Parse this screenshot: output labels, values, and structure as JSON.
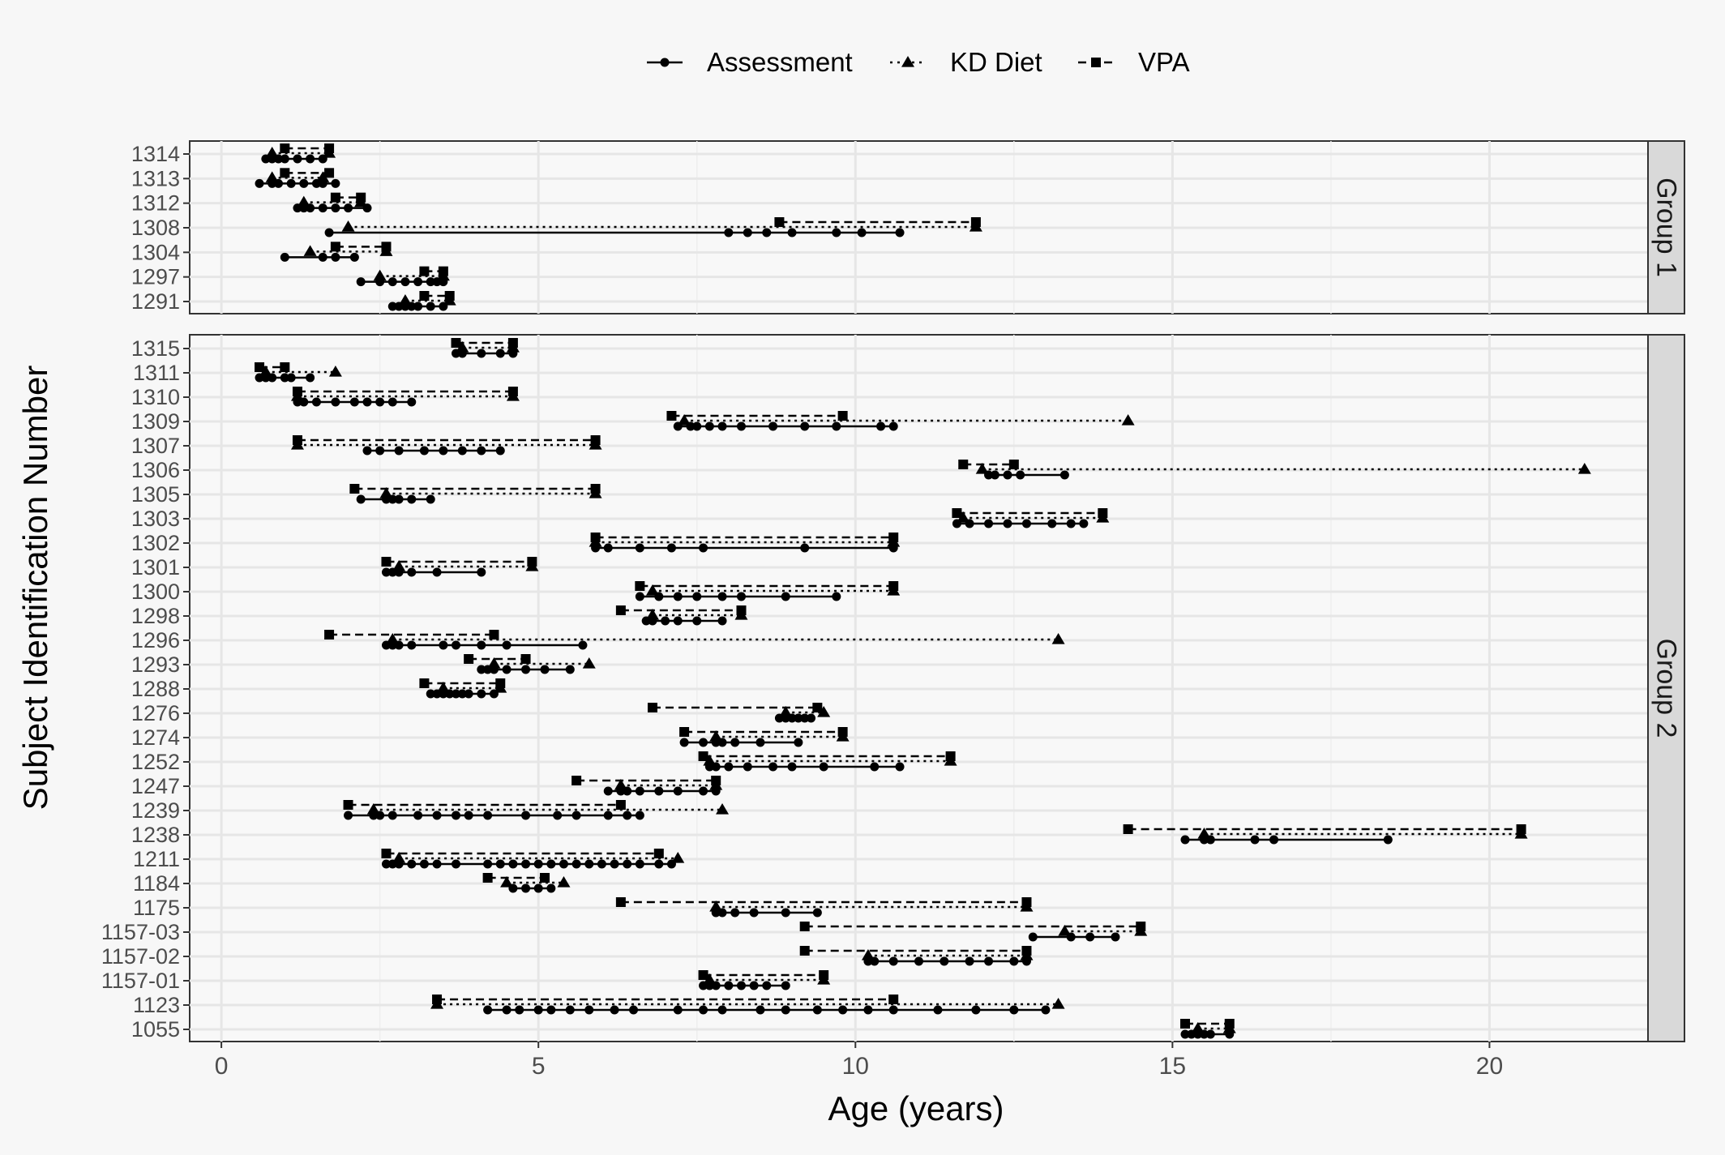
{
  "chart_data": {
    "type": "line",
    "xlabel": "Age (years)",
    "ylabel": "Subject Identification Number",
    "xlim": [
      -0.5,
      22.5
    ],
    "xticks": [
      0,
      5,
      10,
      15,
      20
    ],
    "grid": true,
    "legend_position": "top",
    "legend": [
      {
        "name": "Assessment",
        "linetype": "solid",
        "marker": "circle"
      },
      {
        "name": "KD Diet",
        "linetype": "dotted",
        "marker": "triangle"
      },
      {
        "name": "VPA",
        "linetype": "dashed",
        "marker": "square"
      }
    ],
    "facets": [
      {
        "label": "Group 1",
        "subjects": [
          {
            "id": "1314",
            "assessment": [
              0.7,
              0.8,
              0.9,
              1.0,
              1.2,
              1.4,
              1.6
            ],
            "kd": [
              0.8,
              1.7
            ],
            "vpa": [
              1.0,
              1.7
            ]
          },
          {
            "id": "1313",
            "assessment": [
              0.6,
              0.8,
              0.9,
              1.1,
              1.3,
              1.5,
              1.6,
              1.8
            ],
            "kd": [
              0.8,
              1.6
            ],
            "vpa": [
              1.0,
              1.7
            ]
          },
          {
            "id": "1312",
            "assessment": [
              1.2,
              1.3,
              1.4,
              1.6,
              1.8,
              2.0,
              2.3
            ],
            "kd": [
              1.3,
              2.2
            ],
            "vpa": [
              1.8,
              2.2
            ]
          },
          {
            "id": "1308",
            "assessment": [
              1.7,
              8.0,
              8.3,
              8.6,
              9.0,
              9.7,
              10.1,
              10.7
            ],
            "kd": [
              2.0,
              11.9
            ],
            "vpa": [
              8.8,
              11.9
            ]
          },
          {
            "id": "1304",
            "assessment": [
              1.0,
              1.6,
              1.8,
              2.1
            ],
            "kd": [
              1.4,
              2.6
            ],
            "vpa": [
              1.8,
              2.6
            ]
          },
          {
            "id": "1297",
            "assessment": [
              2.2,
              2.5,
              2.7,
              2.9,
              3.1,
              3.3,
              3.4,
              3.5
            ],
            "kd": [
              2.5,
              3.5
            ],
            "vpa": [
              3.2,
              3.5
            ]
          },
          {
            "id": "1291",
            "assessment": [
              2.7,
              2.8,
              2.9,
              3.0,
              3.1,
              3.3,
              3.5
            ],
            "kd": [
              2.9,
              3.6
            ],
            "vpa": [
              3.2,
              3.6
            ]
          }
        ]
      },
      {
        "label": "Group 2",
        "subjects": [
          {
            "id": "1315",
            "assessment": [
              3.7,
              3.8,
              4.1,
              4.4,
              4.6
            ],
            "kd": [
              3.8,
              4.6
            ],
            "vpa": [
              3.7,
              4.6
            ]
          },
          {
            "id": "1311",
            "assessment": [
              0.6,
              0.7,
              0.8,
              1.0,
              1.1,
              1.4
            ],
            "kd": [
              0.7,
              1.8
            ],
            "vpa": [
              0.6,
              1.0
            ]
          },
          {
            "id": "1310",
            "assessment": [
              1.2,
              1.3,
              1.5,
              1.8,
              2.1,
              2.3,
              2.5,
              2.7,
              3.0
            ],
            "kd": [
              1.2,
              4.6
            ],
            "vpa": [
              1.2,
              4.6
            ]
          },
          {
            "id": "1309",
            "assessment": [
              7.2,
              7.4,
              7.5,
              7.7,
              7.9,
              8.2,
              8.7,
              9.2,
              9.7,
              10.4,
              10.6
            ],
            "kd": [
              7.3,
              14.3
            ],
            "vpa": [
              7.1,
              9.8
            ]
          },
          {
            "id": "1307",
            "assessment": [
              2.3,
              2.5,
              2.8,
              3.2,
              3.5,
              3.8,
              4.1,
              4.4
            ],
            "kd": [
              1.2,
              5.9
            ],
            "vpa": [
              1.2,
              5.9
            ]
          },
          {
            "id": "1306",
            "assessment": [
              12.1,
              12.2,
              12.4,
              12.6,
              13.3
            ],
            "kd": [
              12.0,
              21.5
            ],
            "vpa": [
              11.7,
              12.5
            ]
          },
          {
            "id": "1305",
            "assessment": [
              2.2,
              2.6,
              2.7,
              2.8,
              3.0,
              3.3
            ],
            "kd": [
              2.6,
              5.9
            ],
            "vpa": [
              2.1,
              5.9
            ]
          },
          {
            "id": "1303",
            "assessment": [
              11.6,
              11.8,
              12.1,
              12.4,
              12.7,
              13.1,
              13.4,
              13.6
            ],
            "kd": [
              11.7,
              13.9
            ],
            "vpa": [
              11.6,
              13.9
            ]
          },
          {
            "id": "1302",
            "assessment": [
              5.9,
              6.1,
              6.6,
              7.1,
              7.6,
              9.2,
              10.6
            ],
            "kd": [
              5.9,
              10.6
            ],
            "vpa": [
              5.9,
              10.6
            ]
          },
          {
            "id": "1301",
            "assessment": [
              2.6,
              2.7,
              2.8,
              3.0,
              3.4,
              4.1
            ],
            "kd": [
              2.8,
              4.9
            ],
            "vpa": [
              2.6,
              4.9
            ]
          },
          {
            "id": "1300",
            "assessment": [
              6.6,
              6.9,
              7.2,
              7.5,
              7.9,
              8.2,
              8.9,
              9.7
            ],
            "kd": [
              6.8,
              10.6
            ],
            "vpa": [
              6.6,
              10.6
            ]
          },
          {
            "id": "1298",
            "assessment": [
              6.7,
              6.8,
              7.0,
              7.2,
              7.5,
              7.9
            ],
            "kd": [
              6.8,
              8.2
            ],
            "vpa": [
              6.3,
              8.2
            ]
          },
          {
            "id": "1296",
            "assessment": [
              2.6,
              2.7,
              2.8,
              3.0,
              3.5,
              3.7,
              4.1,
              4.5,
              5.7
            ],
            "kd": [
              2.7,
              13.2
            ],
            "vpa": [
              1.7,
              4.3
            ]
          },
          {
            "id": "1293",
            "assessment": [
              4.1,
              4.2,
              4.3,
              4.5,
              4.8,
              5.1,
              5.5
            ],
            "kd": [
              4.3,
              5.8
            ],
            "vpa": [
              3.9,
              4.8
            ]
          },
          {
            "id": "1288",
            "assessment": [
              3.3,
              3.4,
              3.5,
              3.6,
              3.7,
              3.8,
              3.9,
              4.1,
              4.3
            ],
            "kd": [
              3.5,
              4.4
            ],
            "vpa": [
              3.2,
              4.4
            ]
          },
          {
            "id": "1276",
            "assessment": [
              8.8,
              8.9,
              9.0,
              9.1,
              9.2,
              9.3
            ],
            "kd": [
              8.9,
              9.5
            ],
            "vpa": [
              6.8,
              9.4
            ]
          },
          {
            "id": "1274",
            "assessment": [
              7.3,
              7.6,
              7.8,
              7.9,
              8.1,
              8.5,
              9.1
            ],
            "kd": [
              7.8,
              9.8
            ],
            "vpa": [
              7.3,
              9.8
            ]
          },
          {
            "id": "1252",
            "assessment": [
              7.7,
              7.8,
              8.0,
              8.3,
              8.7,
              9.0,
              9.5,
              10.3,
              10.7
            ],
            "kd": [
              7.7,
              11.5
            ],
            "vpa": [
              7.6,
              11.5
            ]
          },
          {
            "id": "1247",
            "assessment": [
              6.1,
              6.3,
              6.4,
              6.6,
              6.9,
              7.2,
              7.6,
              7.8
            ],
            "kd": [
              6.3,
              7.8
            ],
            "vpa": [
              5.6,
              7.8
            ]
          },
          {
            "id": "1239",
            "assessment": [
              2.0,
              2.4,
              2.5,
              2.7,
              3.1,
              3.4,
              3.7,
              3.9,
              4.2,
              4.8,
              5.3,
              5.6,
              6.1,
              6.4,
              6.6
            ],
            "kd": [
              2.4,
              7.9
            ],
            "vpa": [
              2.0,
              6.3
            ]
          },
          {
            "id": "1238",
            "assessment": [
              15.2,
              15.5,
              15.6,
              16.3,
              16.6,
              18.4
            ],
            "kd": [
              15.5,
              20.5
            ],
            "vpa": [
              14.3,
              20.5
            ]
          },
          {
            "id": "1211",
            "assessment": [
              2.6,
              2.7,
              2.8,
              3.0,
              3.2,
              3.4,
              3.7,
              4.2,
              4.4,
              4.6,
              4.8,
              5.0,
              5.2,
              5.4,
              5.6,
              5.8,
              6.0,
              6.2,
              6.4,
              6.6,
              6.9,
              7.1
            ],
            "kd": [
              2.8,
              7.2
            ],
            "vpa": [
              2.6,
              6.9
            ]
          },
          {
            "id": "1184",
            "assessment": [
              4.6,
              4.8,
              5.0,
              5.2
            ],
            "kd": [
              4.5,
              5.4
            ],
            "vpa": [
              4.2,
              5.1
            ]
          },
          {
            "id": "1175",
            "assessment": [
              7.8,
              7.9,
              8.1,
              8.4,
              8.9,
              9.4
            ],
            "kd": [
              7.8,
              12.7
            ],
            "vpa": [
              6.3,
              12.7
            ]
          },
          {
            "id": "1157-03",
            "assessment": [
              12.8,
              13.4,
              13.7,
              14.1
            ],
            "kd": [
              13.3,
              14.5
            ],
            "vpa": [
              9.2,
              14.5
            ]
          },
          {
            "id": "1157-02",
            "assessment": [
              10.2,
              10.3,
              10.6,
              11.0,
              11.4,
              11.8,
              12.1,
              12.5,
              12.7
            ],
            "kd": [
              10.2,
              12.7
            ],
            "vpa": [
              9.2,
              12.7
            ]
          },
          {
            "id": "1157-01",
            "assessment": [
              7.6,
              7.7,
              7.8,
              8.0,
              8.2,
              8.4,
              8.6,
              8.9
            ],
            "kd": [
              7.7,
              9.5
            ],
            "vpa": [
              7.6,
              9.5
            ]
          },
          {
            "id": "1123",
            "assessment": [
              4.2,
              4.5,
              4.7,
              5.0,
              5.2,
              5.5,
              5.8,
              6.2,
              6.5,
              7.2,
              7.6,
              7.9,
              8.5,
              8.9,
              9.4,
              9.8,
              10.2,
              10.6,
              11.3,
              11.9,
              12.5,
              13.0
            ],
            "kd": [
              3.4,
              13.2
            ],
            "vpa": [
              3.4,
              10.6
            ]
          },
          {
            "id": "1055",
            "assessment": [
              15.2,
              15.3,
              15.4,
              15.5,
              15.6,
              15.9
            ],
            "kd": [
              15.4,
              15.9
            ],
            "vpa": [
              15.2,
              15.9
            ]
          }
        ]
      }
    ]
  }
}
